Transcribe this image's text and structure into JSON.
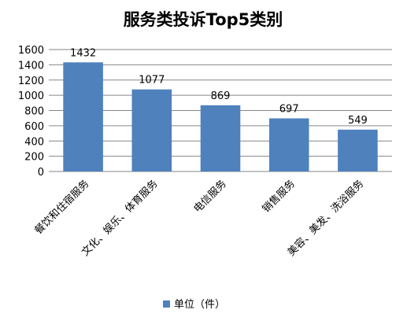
{
  "chart_data": {
    "type": "bar",
    "title": "服务类投诉Top5类别",
    "categories": [
      "餐饮和住宿服务",
      "文化、娱乐、体育服务",
      "电信服务",
      "销售服务",
      "美容、美发、洗浴服务"
    ],
    "series": [
      {
        "name": "单位（件）",
        "values": [
          1432,
          1077,
          869,
          697,
          549
        ]
      }
    ],
    "ylim": [
      0,
      1600
    ],
    "yticks": [
      0,
      200,
      400,
      600,
      800,
      1000,
      1200,
      1400,
      1600
    ],
    "grid": true,
    "legend_position": "bottom",
    "bar_color": "#4f81bd",
    "grid_color": "#868686"
  }
}
